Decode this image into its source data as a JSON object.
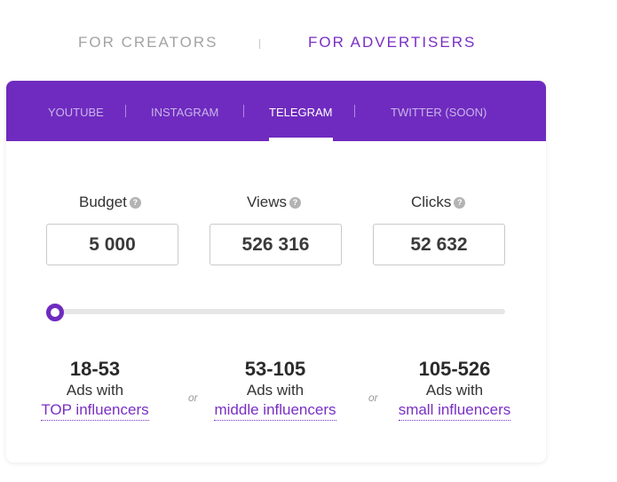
{
  "top_tabs": {
    "creators": "FOR CREATORS",
    "advertisers": "FOR ADVERTISERS"
  },
  "platforms": [
    {
      "label": "YOUTUBE"
    },
    {
      "label": "INSTAGRAM"
    },
    {
      "label": "TELEGRAM"
    },
    {
      "label": "TWITTER (SOON)"
    }
  ],
  "active_platform": "TELEGRAM",
  "metrics": {
    "budget": {
      "label": "Budget",
      "value": "5 000"
    },
    "views": {
      "label": "Views",
      "value": "526 316"
    },
    "clicks": {
      "label": "Clicks",
      "value": "52 632"
    }
  },
  "help_icon_glyph": "?",
  "slider": {
    "level": 0
  },
  "results": [
    {
      "range": "18-53",
      "ads": "Ads with",
      "link": "TOP influencers"
    },
    {
      "range": "53-105",
      "ads": "Ads with",
      "link": "middle influencers"
    },
    {
      "range": "105-526",
      "ads": "Ads with",
      "link": "small influencers"
    }
  ],
  "or_text": "or",
  "colors": {
    "accent": "#6f2bbf",
    "inactive_tab": "#a3a3a3"
  }
}
